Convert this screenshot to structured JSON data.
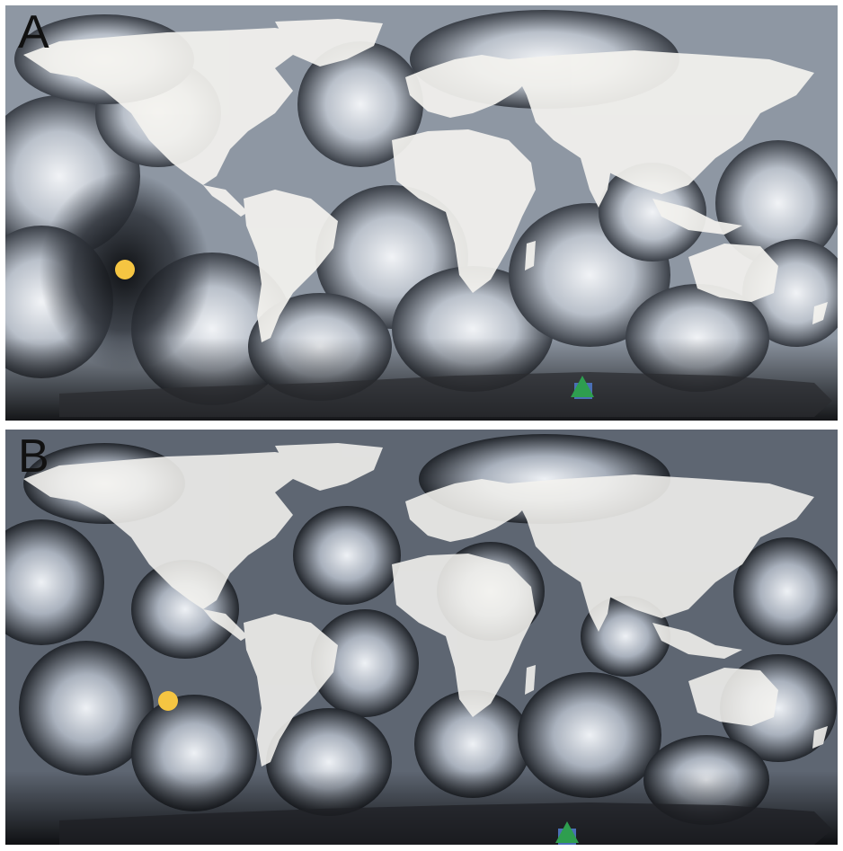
{
  "panels": [
    {
      "label": "A"
    },
    {
      "label": "B"
    }
  ],
  "colors": {
    "ocean_light": "#d9dde3",
    "ocean_mid": "#9aa3b0",
    "ocean_dark": "#1c1f24",
    "land": "#f4f3ef",
    "marker_circle": "#f5c542",
    "marker_triangle": "#2e9e4f",
    "marker_square": "#4a6fb5"
  },
  "markers": [
    {
      "shape": "circle",
      "icon": "yellow-circle-marker"
    },
    {
      "shape": "square",
      "icon": "blue-square-marker"
    },
    {
      "shape": "triangle",
      "icon": "green-triangle-marker"
    }
  ]
}
